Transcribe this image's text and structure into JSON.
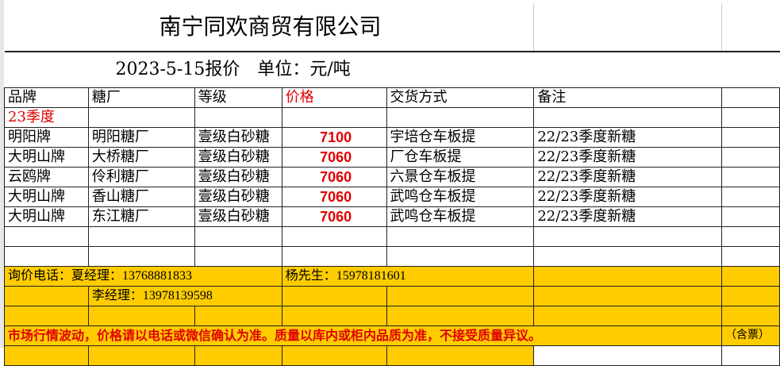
{
  "title": "南宁同欢商贸有限公司",
  "subtitle": "2023-5-15报价　单位：元/吨",
  "headers": [
    "品牌",
    "糖厂",
    "等级",
    "价格",
    "交货方式",
    "备注"
  ],
  "season": "23季度",
  "rows": [
    [
      "明阳牌",
      "明阳糖厂",
      "壹级白砂糖",
      "7100",
      "宇培仓车板提",
      "22/23季度新糖"
    ],
    [
      "大明山牌",
      "大桥糖厂",
      "壹级白砂糖",
      "7060",
      "厂仓车板提",
      "22/23季度新糖"
    ],
    [
      "云鸥牌",
      "伶利糖厂",
      "壹级白砂糖",
      "7060",
      "六景仓车板提",
      "22/23季度新糖"
    ],
    [
      "大明山牌",
      "香山糖厂",
      "壹级白砂糖",
      "7060",
      "武鸣仓车板提",
      "22/23季度新糖"
    ],
    [
      "大明山牌",
      "东江糖厂",
      "壹级白砂糖",
      "7060",
      "武鸣仓车板提",
      "22/23季度新糖"
    ]
  ],
  "contact": {
    "label": "询价电话：夏经理：13768881833",
    "yang": "杨先生：15978181601",
    "li": "李经理：13978139598"
  },
  "notice": "市场行情波动，价格请以电话或微信确认为准。质量以库内或柜内品质为准，不接受质量异议。",
  "tax": "（含票）",
  "colors": {
    "highlight": "#ffcc00",
    "red": "#e00000"
  }
}
